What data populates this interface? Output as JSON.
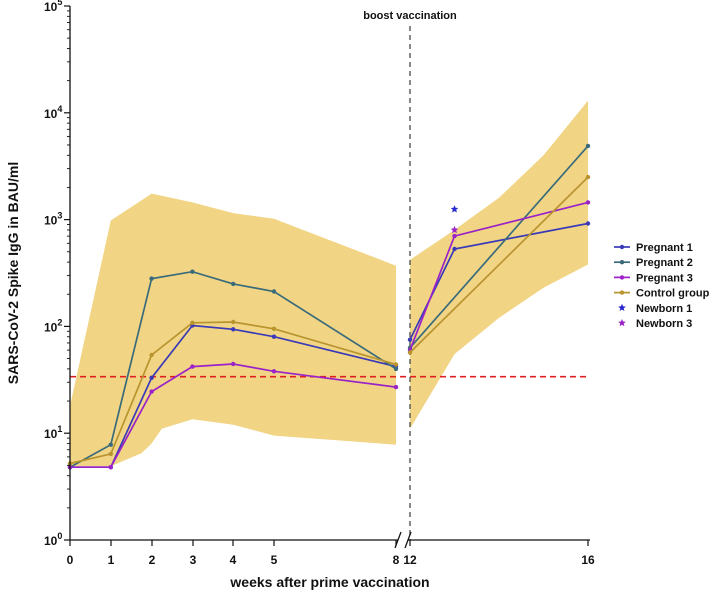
{
  "chart_data": {
    "type": "line",
    "yscale": "log",
    "ylim": [
      1,
      100000
    ],
    "ylabel": "SARS-CoV-2 Spike IgG in BAU/ml",
    "xlabel": "weeks after prime vaccination",
    "x_ticks": [
      "0",
      "1",
      "2",
      "3",
      "4",
      "5",
      "8",
      "12",
      "16"
    ],
    "y_ticks": [
      {
        "value": 1,
        "base": "10",
        "exp": "0"
      },
      {
        "value": 10,
        "base": "10",
        "exp": "1"
      },
      {
        "value": 100,
        "base": "10",
        "exp": "2"
      },
      {
        "value": 1000,
        "base": "10",
        "exp": "3"
      },
      {
        "value": 10000,
        "base": "10",
        "exp": "4"
      },
      {
        "value": 100000,
        "base": "10",
        "exp": "5"
      }
    ],
    "threshold": 33.8,
    "annotation": "boost vaccination",
    "band": {
      "color": "#f1d585",
      "segment1": {
        "x": [
          0,
          1,
          2,
          3,
          4,
          5,
          8
        ],
        "upper": [
          18,
          980,
          1750,
          1450,
          1150,
          1020,
          370
        ],
        "lower": [
          4.9,
          4.9,
          8,
          13.5,
          12,
          9.5,
          7.8
        ],
        "lower_extra": [
          [
            1.75,
            6.5
          ],
          [
            2.25,
            11
          ]
        ]
      },
      "segment2": {
        "x": [
          12,
          13,
          14,
          15,
          16
        ],
        "upper": [
          420,
          800,
          1600,
          4000,
          13000
        ],
        "lower": [
          11,
          55,
          120,
          230,
          380
        ]
      }
    },
    "series": [
      {
        "name": "Pregnant 1",
        "color": "#3a3ab8",
        "x": [
          0,
          1,
          2,
          3,
          4,
          5,
          8,
          12,
          13,
          16
        ],
        "y": [
          4.8,
          4.8,
          33,
          102,
          94,
          80,
          42,
          75,
          530,
          920
        ]
      },
      {
        "name": "Pregnant 2",
        "color": "#3a6b7a",
        "x": [
          0,
          1,
          2,
          3,
          4,
          5,
          8,
          12,
          16
        ],
        "y": [
          4.8,
          7.8,
          280,
          325,
          250,
          212,
          40,
          63,
          4900
        ]
      },
      {
        "name": "Pregnant 3",
        "color": "#9a22c8",
        "x": [
          0,
          1,
          2,
          3,
          4,
          5,
          8,
          12,
          13,
          16
        ],
        "y": [
          4.8,
          4.8,
          24.5,
          42,
          44.5,
          38,
          27,
          60,
          700,
          1450
        ]
      },
      {
        "name": "Control group",
        "color": "#b8942e",
        "x": [
          0,
          1,
          2,
          3,
          4,
          5,
          8,
          12,
          16
        ],
        "y": [
          5.2,
          6.4,
          54,
          108,
          110,
          95,
          44,
          57,
          2500
        ]
      }
    ],
    "newborns": [
      {
        "name": "Newborn 1",
        "color": "#2a2ad0",
        "x": 13,
        "y": 1250
      },
      {
        "name": "Newborn 3",
        "color": "#9a22c8",
        "x": 13,
        "y": 800
      }
    ]
  }
}
